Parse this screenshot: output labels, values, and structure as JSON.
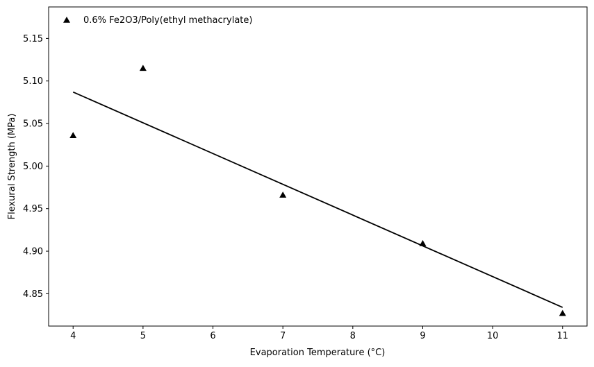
{
  "chart_data": {
    "type": "scatter",
    "title": "",
    "xlabel": "Evaporation Temperature (°C)",
    "ylabel": "Flexural Strength (MPa)",
    "xlim": [
      3.65,
      11.35
    ],
    "ylim": [
      4.812,
      5.187
    ],
    "xticks": [
      4,
      5,
      6,
      7,
      8,
      9,
      10,
      11
    ],
    "yticks": [
      4.85,
      4.9,
      4.95,
      5.0,
      5.05,
      5.1,
      5.15
    ],
    "ytick_labels": [
      "4.85",
      "4.90",
      "4.95",
      "5.00",
      "5.05",
      "5.10",
      "5.15"
    ],
    "grid": false,
    "legend_position": "top-left",
    "series": [
      {
        "name": "0.6% Fe2O3/Poly(ethyl methacrylate)",
        "marker": "triangle",
        "color": "#000000",
        "x": [
          4,
          5,
          7,
          9,
          11
        ],
        "y": [
          5.036,
          5.115,
          4.966,
          4.909,
          4.827
        ]
      }
    ],
    "trendline": {
      "color": "#000000",
      "x": [
        4,
        11
      ],
      "y": [
        5.087,
        4.834
      ]
    }
  }
}
